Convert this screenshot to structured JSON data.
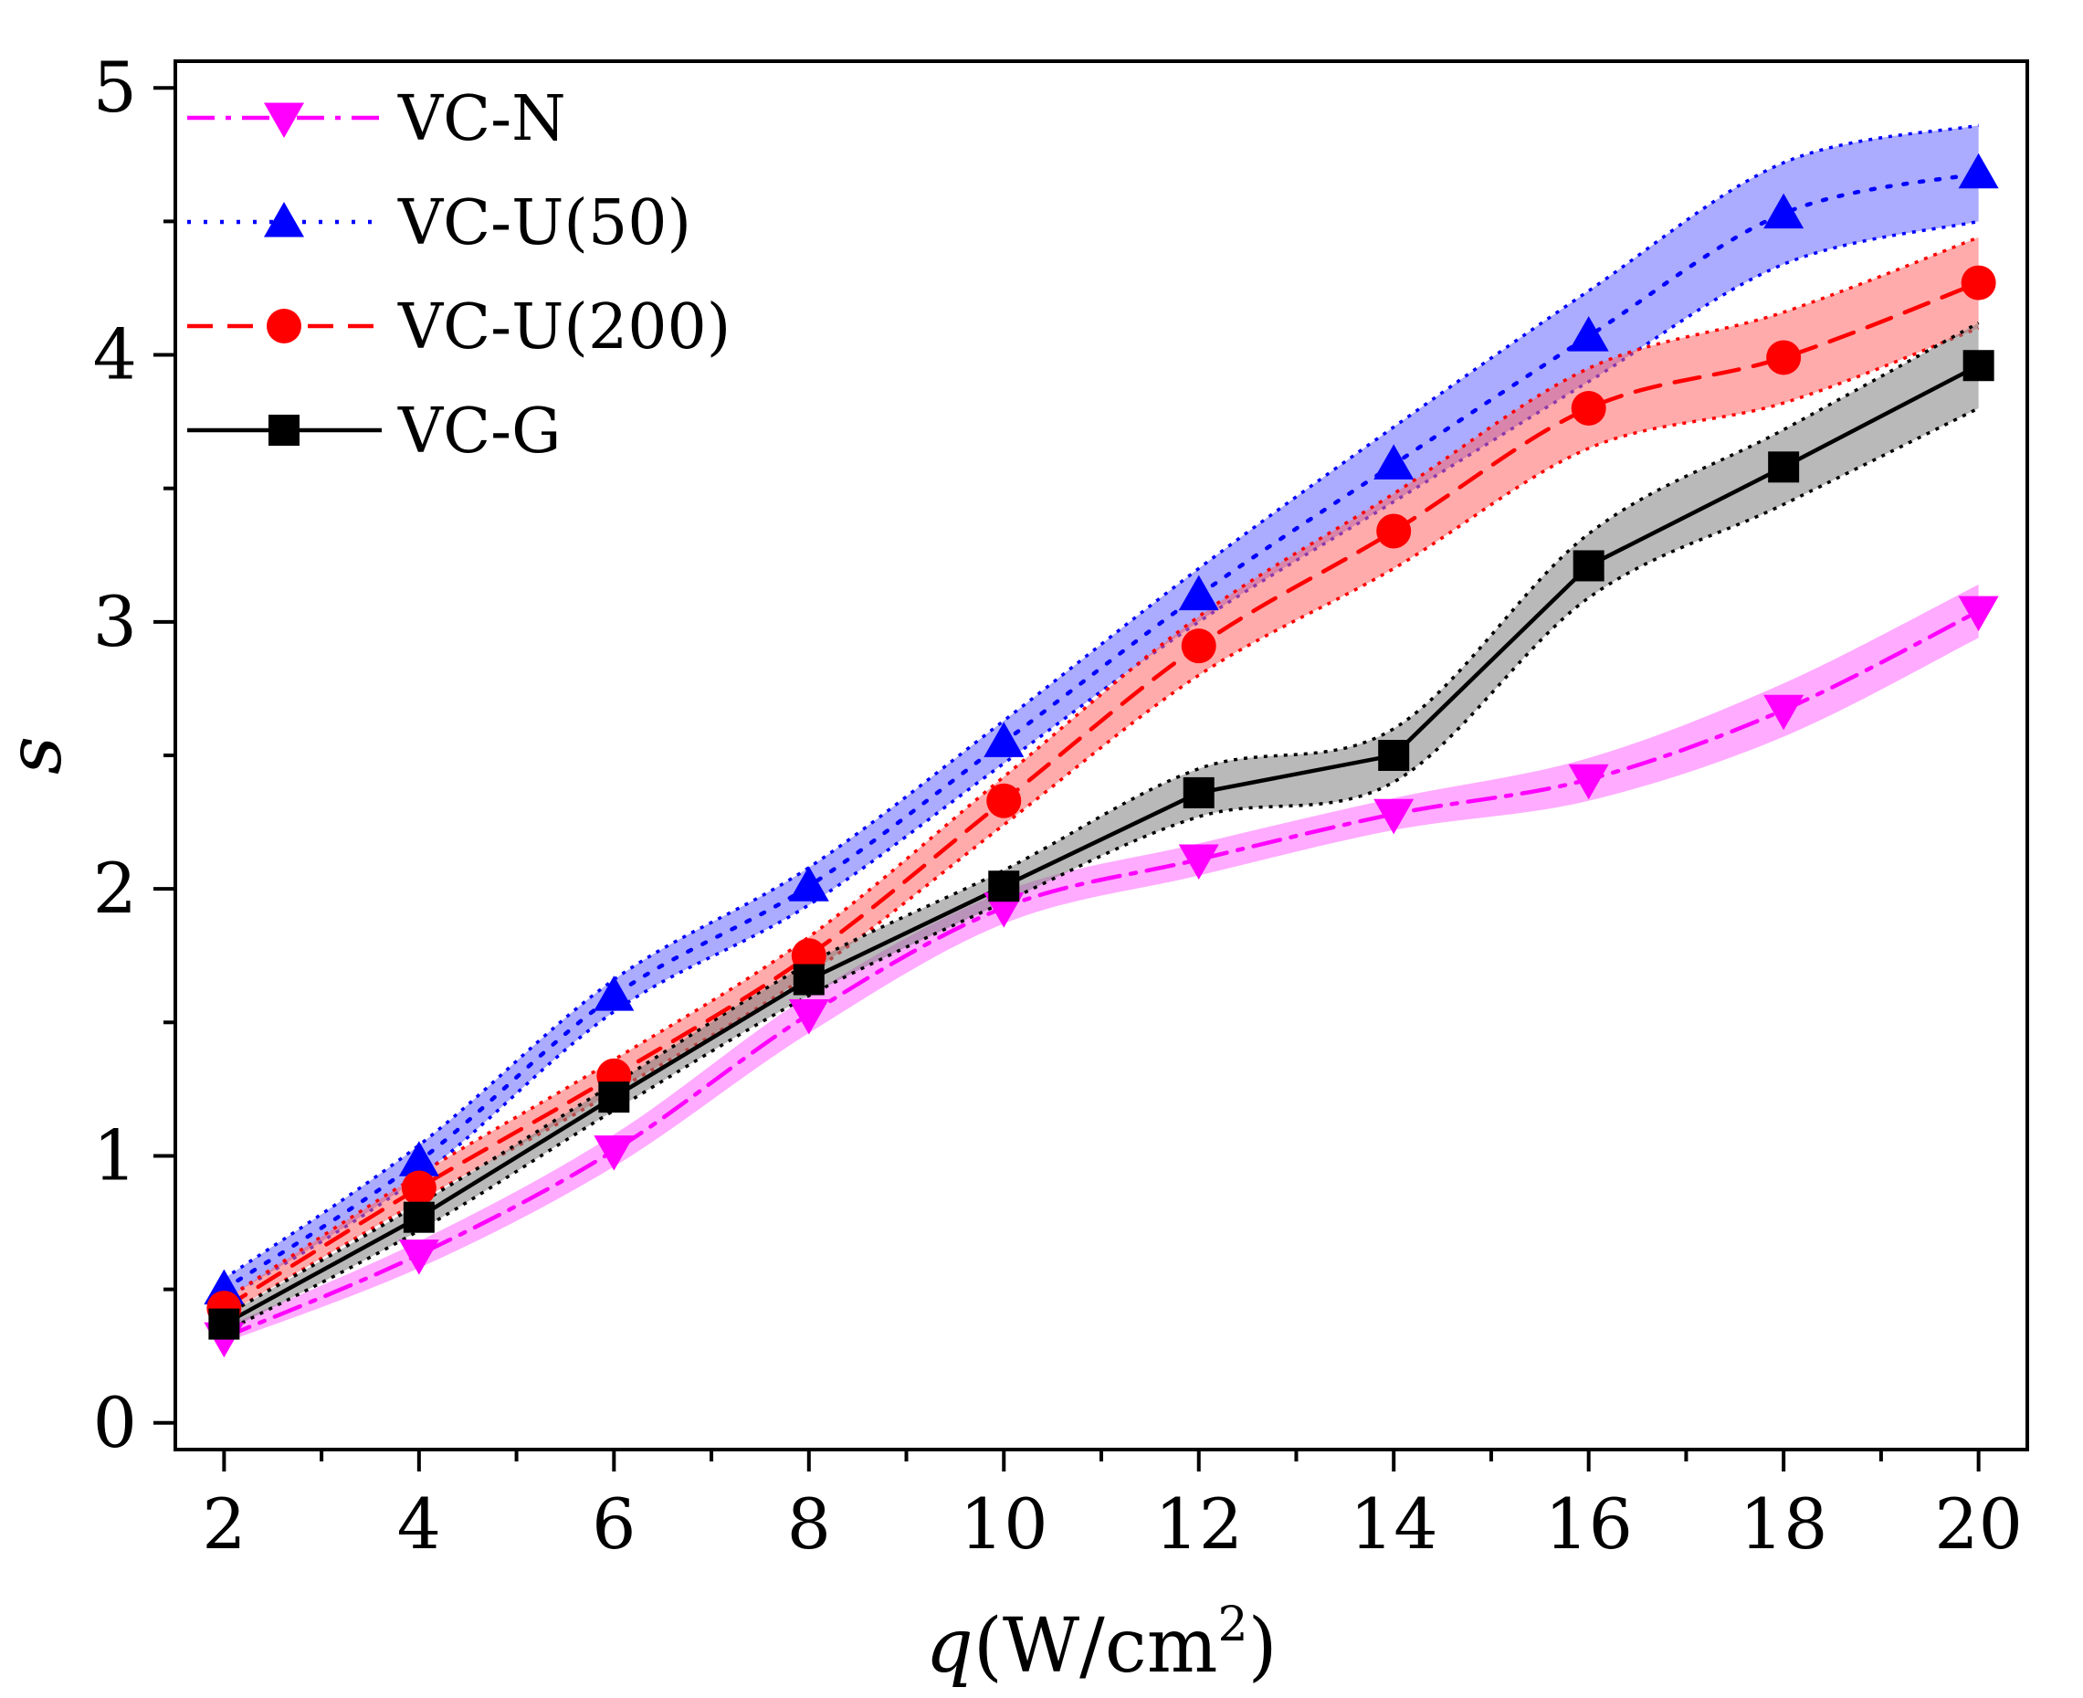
{
  "chart_data": {
    "type": "line",
    "title": "",
    "xlabel": "q(W/cm2)",
    "xlabel_parts": {
      "symbol": "q",
      "unit_open": "(W/cm",
      "superscript": "2",
      "unit_close": ")"
    },
    "ylabel": "s",
    "xlim": [
      1.5,
      20.5
    ],
    "ylim": [
      -0.1,
      5.1
    ],
    "xticks": [
      2,
      4,
      6,
      8,
      10,
      12,
      14,
      16,
      18,
      20
    ],
    "xtick_labels": [
      "2",
      "4",
      "6",
      "8",
      "10",
      "12",
      "14",
      "16",
      "18",
      "20"
    ],
    "yticks": [
      0,
      1,
      2,
      3,
      4,
      5
    ],
    "ytick_labels": [
      "0",
      "1",
      "2",
      "3",
      "4",
      "5"
    ],
    "grid": false,
    "legend_position": "top-left",
    "x": [
      2,
      4,
      6,
      8,
      10,
      12,
      14,
      16,
      18,
      20
    ],
    "series": [
      {
        "name": "VC-N",
        "color": "#ff00ff",
        "band_color": "#ff66ff",
        "marker": "triangle-down",
        "linestyle": "dashdot",
        "values": [
          0.32,
          0.63,
          1.02,
          1.53,
          1.93,
          2.11,
          2.28,
          2.41,
          2.67,
          3.04
        ],
        "band_lower": [
          0.3,
          0.58,
          0.96,
          1.46,
          1.87,
          2.05,
          2.22,
          2.33,
          2.57,
          2.94
        ],
        "band_upper": [
          0.36,
          0.68,
          1.08,
          1.6,
          1.99,
          2.17,
          2.34,
          2.49,
          2.77,
          3.14
        ]
      },
      {
        "name": "VC-U(50)",
        "color": "#0000ff",
        "band_color": "#6666ff",
        "marker": "triangle-up",
        "linestyle": "dotted",
        "values": [
          0.5,
          0.98,
          1.6,
          2.01,
          2.55,
          3.1,
          3.59,
          4.07,
          4.53,
          4.68
        ],
        "band_lower": [
          0.46,
          0.92,
          1.54,
          1.94,
          2.47,
          3.0,
          3.45,
          3.9,
          4.34,
          4.5
        ],
        "band_upper": [
          0.54,
          1.04,
          1.66,
          2.08,
          2.63,
          3.2,
          3.73,
          4.24,
          4.72,
          4.86
        ]
      },
      {
        "name": "VC-U(200)",
        "color": "#ff0000",
        "band_color": "#ff6666",
        "marker": "circle",
        "linestyle": "dashed",
        "values": [
          0.43,
          0.88,
          1.3,
          1.75,
          2.33,
          2.91,
          3.34,
          3.8,
          3.99,
          4.27
        ],
        "band_lower": [
          0.4,
          0.83,
          1.24,
          1.68,
          2.24,
          2.8,
          3.2,
          3.65,
          3.82,
          4.1
        ],
        "band_upper": [
          0.46,
          0.93,
          1.36,
          1.82,
          2.42,
          3.02,
          3.48,
          3.95,
          4.16,
          4.44
        ]
      },
      {
        "name": "VC-G",
        "color": "#000000",
        "band_color": "#808080",
        "marker": "square",
        "linestyle": "solid",
        "values": [
          0.37,
          0.77,
          1.22,
          1.66,
          2.01,
          2.36,
          2.5,
          3.21,
          3.58,
          3.96
        ],
        "band_lower": [
          0.34,
          0.72,
          1.17,
          1.6,
          1.95,
          2.27,
          2.4,
          3.09,
          3.44,
          3.8
        ],
        "band_upper": [
          0.4,
          0.82,
          1.27,
          1.72,
          2.07,
          2.45,
          2.6,
          3.33,
          3.72,
          4.12
        ]
      }
    ]
  }
}
